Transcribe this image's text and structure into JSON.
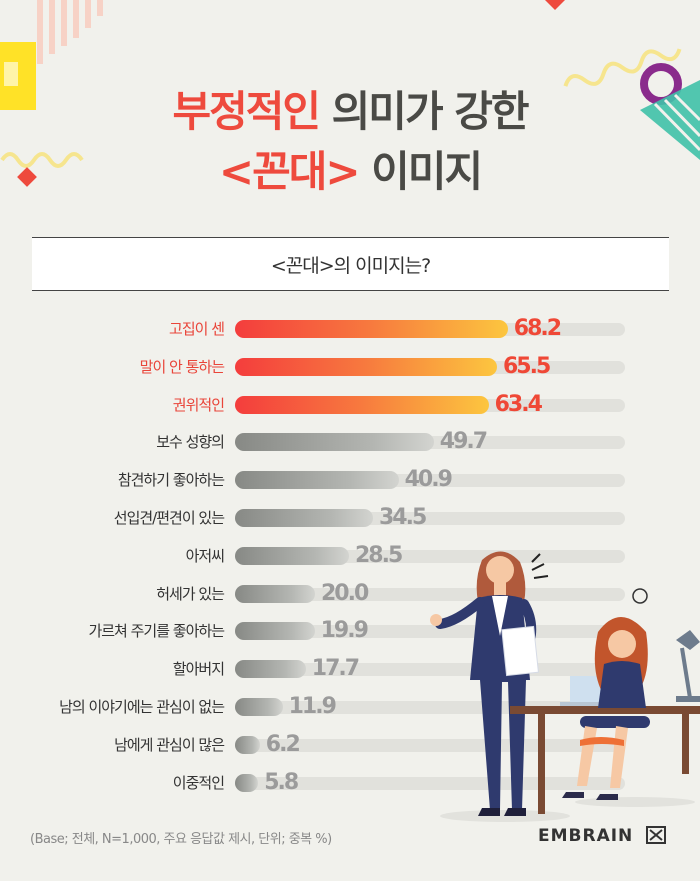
{
  "title": {
    "line1_highlight": "부정적인",
    "line1_rest": " 의미가 강한",
    "line2_highlight": "<꼰대>",
    "line2_rest": " 이미지"
  },
  "subtitle": "<꼰대>의 이미지는?",
  "colors": {
    "accent_red": "#ee4a3d",
    "bar_hot_start": "#f43d3d",
    "bar_hot_end": "#fcc63f",
    "bar_cool": "#9a9c98",
    "value_grey": "#9b9b9b"
  },
  "chart_data": {
    "type": "bar",
    "orientation": "horizontal",
    "categories": [
      "고집이 센",
      "말이 안 통하는",
      "권위적인",
      "보수 성향의",
      "참견하기 좋아하는",
      "선입견/편견이 있는",
      "아저씨",
      "허세가 있는",
      "가르쳐 주기를 좋아하는",
      "할아버지",
      "남의 이야기에는 관심이 없는",
      "남에게 관심이 많은",
      "이중적인"
    ],
    "values": [
      68.2,
      65.5,
      63.4,
      49.7,
      40.9,
      34.5,
      28.5,
      20.0,
      19.9,
      17.7,
      11.9,
      6.2,
      5.8
    ],
    "value_labels": [
      "68.2",
      "65.5",
      "63.4",
      "49.7",
      "40.9",
      "34.5",
      "28.5",
      "20.0",
      "19.9",
      "17.7",
      "11.9",
      "6.2",
      "5.8"
    ],
    "highlighted_top": 3,
    "xlim": [
      0,
      100
    ],
    "title": "<꼰대>의 이미지는?",
    "grid": false
  },
  "footer": {
    "base_note": "(Base; 전체, N=1,000, 주요 응답값 제시, 단위; 중복 %)",
    "brand": "EMBRAIN"
  }
}
